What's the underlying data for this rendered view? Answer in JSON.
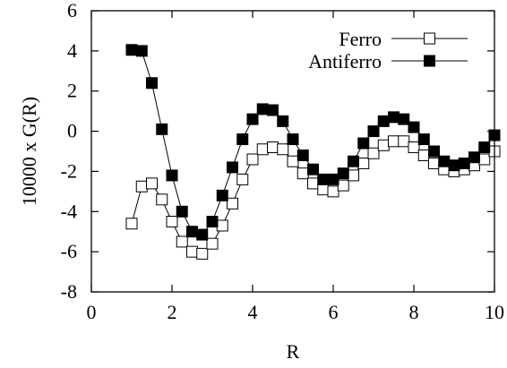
{
  "chart_data": {
    "type": "line",
    "xlabel": "R",
    "ylabel": "10000 x G(R)",
    "xlim": [
      0,
      10
    ],
    "ylim": [
      -8,
      6
    ],
    "xticks": [
      0,
      2,
      4,
      6,
      8,
      10
    ],
    "yticks": [
      -8,
      -6,
      -4,
      -2,
      0,
      2,
      4,
      6
    ],
    "grid": false,
    "legend_position": "top-right",
    "series": [
      {
        "name": "Ferro",
        "marker": "open-square",
        "x": [
          1.0,
          1.25,
          1.5,
          1.75,
          2.0,
          2.25,
          2.5,
          2.75,
          3.0,
          3.25,
          3.5,
          3.75,
          4.0,
          4.25,
          4.5,
          4.75,
          5.0,
          5.25,
          5.5,
          5.75,
          6.0,
          6.25,
          6.5,
          6.75,
          7.0,
          7.25,
          7.5,
          7.75,
          8.0,
          8.25,
          8.5,
          8.75,
          9.0,
          9.25,
          9.5,
          9.75,
          10.0
        ],
        "y": [
          -4.6,
          -2.75,
          -2.6,
          -3.4,
          -4.5,
          -5.5,
          -6.0,
          -6.1,
          -5.6,
          -4.7,
          -3.6,
          -2.4,
          -1.4,
          -0.9,
          -0.8,
          -0.9,
          -1.5,
          -2.1,
          -2.6,
          -2.9,
          -3.0,
          -2.7,
          -2.2,
          -1.6,
          -1.1,
          -0.7,
          -0.5,
          -0.5,
          -0.8,
          -1.2,
          -1.6,
          -1.9,
          -2.0,
          -1.9,
          -1.7,
          -1.4,
          -1.0
        ]
      },
      {
        "name": "Antiferro",
        "marker": "filled-square",
        "x": [
          1.0,
          1.25,
          1.5,
          1.75,
          2.0,
          2.25,
          2.5,
          2.75,
          3.0,
          3.25,
          3.5,
          3.75,
          4.0,
          4.25,
          4.5,
          4.75,
          5.0,
          5.25,
          5.5,
          5.75,
          6.0,
          6.25,
          6.5,
          6.75,
          7.0,
          7.25,
          7.5,
          7.75,
          8.0,
          8.25,
          8.5,
          8.75,
          9.0,
          9.25,
          9.5,
          9.75,
          10.0
        ],
        "y": [
          4.05,
          4.0,
          2.4,
          0.1,
          -2.2,
          -4.0,
          -5.0,
          -5.15,
          -4.5,
          -3.2,
          -1.8,
          -0.4,
          0.6,
          1.1,
          1.05,
          0.5,
          -0.4,
          -1.2,
          -1.9,
          -2.4,
          -2.4,
          -2.1,
          -1.5,
          -0.6,
          0.0,
          0.5,
          0.7,
          0.6,
          0.2,
          -0.4,
          -1.0,
          -1.5,
          -1.7,
          -1.6,
          -1.3,
          -0.8,
          -0.2
        ]
      }
    ]
  }
}
